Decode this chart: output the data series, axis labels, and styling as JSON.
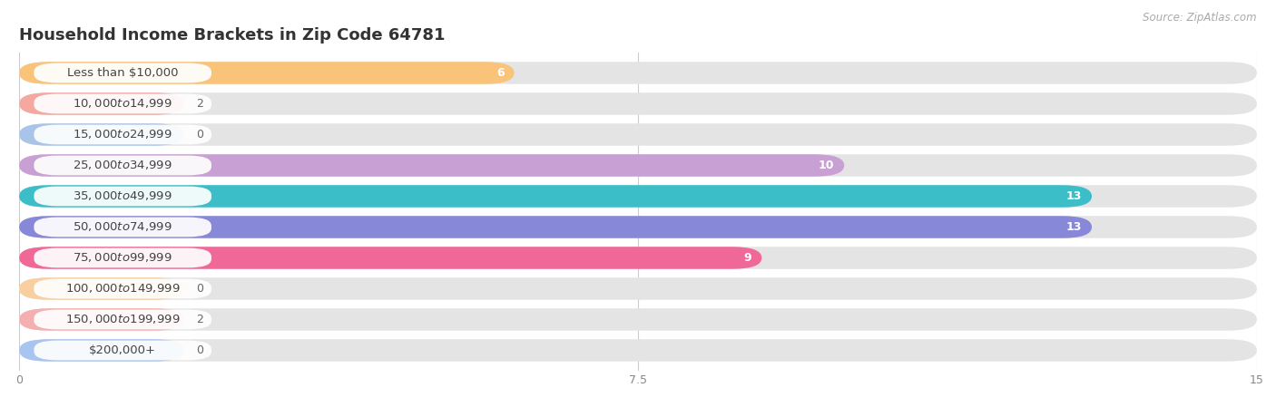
{
  "title": "Household Income Brackets in Zip Code 64781",
  "source": "Source: ZipAtlas.com",
  "categories": [
    "Less than $10,000",
    "$10,000 to $14,999",
    "$15,000 to $24,999",
    "$25,000 to $34,999",
    "$35,000 to $49,999",
    "$50,000 to $74,999",
    "$75,000 to $99,999",
    "$100,000 to $149,999",
    "$150,000 to $199,999",
    "$200,000+"
  ],
  "values": [
    6,
    2,
    0,
    10,
    13,
    13,
    9,
    0,
    2,
    0
  ],
  "colors": [
    "#F9C47A",
    "#F4A8A0",
    "#A8C4E8",
    "#C9A0D4",
    "#3BBEC8",
    "#8888D8",
    "#F06898",
    "#F9CFA0",
    "#F4B0B0",
    "#A8C4F0"
  ],
  "xlim": [
    0,
    15
  ],
  "xticks": [
    0,
    7.5,
    15
  ],
  "background_color": "#ffffff",
  "bar_bg_color": "#e8e8e8",
  "title_fontsize": 13,
  "label_fontsize": 9.5,
  "value_fontsize": 9
}
